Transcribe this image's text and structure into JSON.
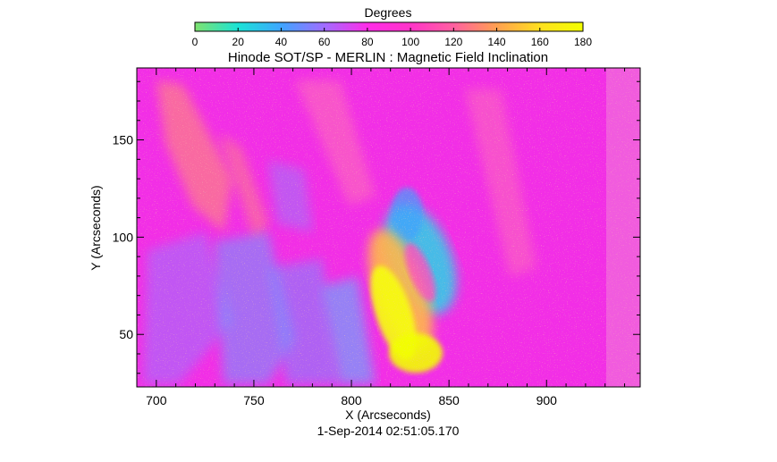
{
  "chart_data": {
    "type": "heatmap",
    "title": "Hinode SOT/SP - MERLIN : Magnetic Field Inclination",
    "xlabel": "X (Arcseconds)",
    "ylabel": "Y (Arcseconds)",
    "timestamp": "1-Sep-2014 02:51:05.170",
    "xlim": [
      690,
      948
    ],
    "ylim": [
      23,
      187
    ],
    "xticks": [
      700,
      750,
      800,
      850,
      900
    ],
    "yticks": [
      50,
      100,
      150
    ],
    "colorbar": {
      "title": "Degrees",
      "range": [
        0,
        180
      ],
      "ticks": [
        0,
        20,
        40,
        60,
        80,
        100,
        120,
        140,
        160,
        180
      ],
      "colors": [
        "#7fe26f",
        "#19e3d6",
        "#3fa5ff",
        "#a06cff",
        "#ff2ce8",
        "#ff34c8",
        "#ff60a0",
        "#ffa050",
        "#ffe020",
        "#f2ff00"
      ]
    },
    "field_summary": {
      "background": "magenta (~100 degrees)",
      "feature": "yellow/orange (~150-180 degrees) inclined patch near x 810-840, y 30-100",
      "opposite": "cyan/blue (~40-60 degrees) patches near x 830-845 and x 740-800",
      "noisy_band_x": [
        928,
        948
      ]
    }
  }
}
